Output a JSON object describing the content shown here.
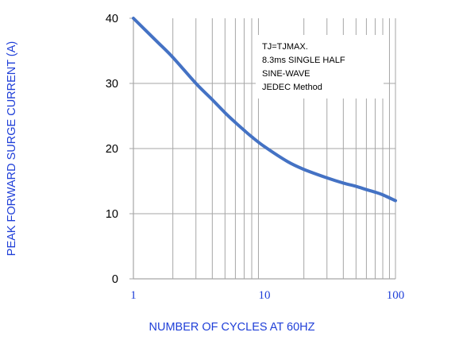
{
  "chart_data": {
    "type": "line",
    "xlabel": "NUMBER OF CYCLES AT 60HZ",
    "ylabel": "PEAK FORWARD SURGE CURRENT (A)",
    "x_scale": "log",
    "xlim": [
      1,
      100
    ],
    "ylim": [
      0,
      40
    ],
    "x_ticks": [
      "1",
      "10",
      "100"
    ],
    "y_ticks": [
      "0",
      "10",
      "20",
      "30",
      "40"
    ],
    "grid": true,
    "annotation": [
      "TJ=TJMAX.",
      "8.3ms SINGLE HALF",
      "SINE-WAVE",
      "JEDEC Method"
    ],
    "series": [
      {
        "color": "#4472c4",
        "x": [
          1,
          1.5,
          2,
          3,
          4,
          5,
          6,
          7,
          8,
          10,
          15,
          20,
          30,
          40,
          50,
          60,
          70,
          80,
          100
        ],
        "y": [
          40,
          36.5,
          34,
          30,
          27.5,
          25.5,
          24,
          22.8,
          21.8,
          20.3,
          18,
          16.8,
          15.5,
          14.7,
          14.2,
          13.7,
          13.3,
          12.9,
          12
        ]
      }
    ]
  }
}
